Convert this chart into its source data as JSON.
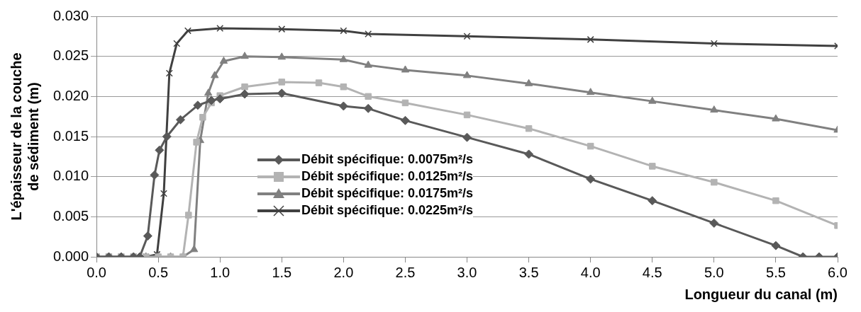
{
  "chart_data": {
    "type": "line",
    "xlabel": "Longueur du canal (m)",
    "ylabel": "L'épaisseur de la couche\nde sédiment (m)",
    "xlim": [
      0,
      6
    ],
    "ylim": [
      0,
      0.03
    ],
    "xticks": [
      {
        "value": 0,
        "label": "0.0"
      },
      {
        "value": 0.5,
        "label": "0.5"
      },
      {
        "value": 1,
        "label": "1.0"
      },
      {
        "value": 1.5,
        "label": "1.5"
      },
      {
        "value": 2,
        "label": "2.0"
      },
      {
        "value": 2.5,
        "label": "2.5"
      },
      {
        "value": 3,
        "label": "3.0"
      },
      {
        "value": 3.5,
        "label": "3.5"
      },
      {
        "value": 4,
        "label": "4.0"
      },
      {
        "value": 4.5,
        "label": "4.5"
      },
      {
        "value": 5,
        "label": "5.0"
      },
      {
        "value": 5.5,
        "label": "5.5"
      },
      {
        "value": 6,
        "label": "6.0"
      }
    ],
    "yticks": [
      {
        "value": 0,
        "label": "0.000"
      },
      {
        "value": 0.005,
        "label": "0.005"
      },
      {
        "value": 0.01,
        "label": "0.010"
      },
      {
        "value": 0.015,
        "label": "0.015"
      },
      {
        "value": 0.02,
        "label": "0.020"
      },
      {
        "value": 0.025,
        "label": "0.025"
      },
      {
        "value": 0.03,
        "label": "0.030"
      }
    ],
    "grid": "y",
    "legend": "bottom left",
    "line_style": "solid",
    "series": [
      {
        "name": "Débit spécifique: 0.0075m²/s",
        "color": "#595959",
        "marker": "diamond",
        "x": [
          0,
          0.1,
          0.2,
          0.3,
          0.35,
          0.415,
          0.47,
          0.51,
          0.57,
          0.68,
          0.82,
          0.93,
          1.0,
          1.2,
          1.5,
          2.0,
          2.2,
          2.5,
          3.0,
          3.5,
          4.0,
          4.5,
          5.0,
          5.5,
          5.72,
          5.85,
          6.0
        ],
        "values": [
          0,
          0,
          0,
          0,
          0,
          0.0026,
          0.0102,
          0.0133,
          0.015,
          0.0171,
          0.0189,
          0.0195,
          0.0197,
          0.0203,
          0.0204,
          0.0188,
          0.0185,
          0.017,
          0.0149,
          0.0128,
          0.0097,
          0.007,
          0.0042,
          0.0014,
          0,
          0,
          0
        ]
      },
      {
        "name": "Débit spécifique: 0.0125m²/s",
        "color": "#b3b3b3",
        "marker": "square",
        "x": [
          0,
          0.1,
          0.2,
          0.3,
          0.4,
          0.5,
          0.6,
          0.7,
          0.745,
          0.81,
          0.86,
          0.93,
          1.0,
          1.2,
          1.5,
          1.8,
          2.0,
          2.2,
          2.5,
          3.0,
          3.5,
          4.0,
          4.5,
          5.0,
          5.5,
          6.0
        ],
        "values": [
          0,
          0,
          0,
          0,
          0,
          0,
          0,
          0,
          0.0052,
          0.0143,
          0.0174,
          0.0192,
          0.0201,
          0.0212,
          0.0218,
          0.0217,
          0.0212,
          0.02,
          0.0192,
          0.0177,
          0.016,
          0.0138,
          0.0113,
          0.0093,
          0.007,
          0.0039
        ]
      },
      {
        "name": "Débit spécifique: 0.0175m²/s",
        "color": "#808080",
        "marker": "triangle",
        "x": [
          0,
          0.1,
          0.2,
          0.3,
          0.4,
          0.5,
          0.6,
          0.7,
          0.79,
          0.84,
          0.905,
          0.957,
          1.03,
          1.2,
          1.5,
          2.0,
          2.2,
          2.5,
          3.0,
          3.5,
          4.0,
          4.5,
          5.0,
          5.5,
          6.0
        ],
        "values": [
          0,
          0,
          0,
          0,
          0,
          0,
          0,
          0,
          0.0009,
          0.0145,
          0.0204,
          0.0226,
          0.0244,
          0.025,
          0.0249,
          0.0246,
          0.0239,
          0.0233,
          0.0226,
          0.0216,
          0.0205,
          0.0194,
          0.0183,
          0.0172,
          0.0158
        ]
      },
      {
        "name": "Débit spécifique: 0.0225m²/s",
        "color": "#404040",
        "marker": "cross",
        "x": [
          0,
          0.1,
          0.2,
          0.3,
          0.4,
          0.49,
          0.545,
          0.59,
          0.65,
          0.74,
          1.0,
          1.5,
          2.0,
          2.2,
          3.0,
          4.0,
          5.0,
          6.0
        ],
        "values": [
          0,
          0,
          0,
          0,
          0,
          0.0003,
          0.0079,
          0.0229,
          0.0266,
          0.0282,
          0.0285,
          0.0284,
          0.0282,
          0.0278,
          0.0275,
          0.0271,
          0.0266,
          0.0263
        ]
      }
    ]
  }
}
